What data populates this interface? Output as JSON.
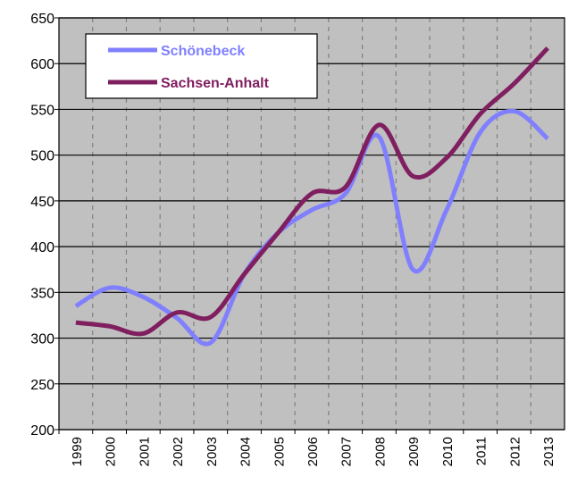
{
  "chart_data": {
    "type": "line",
    "categories": [
      "1999",
      "2000",
      "2001",
      "2002",
      "2003",
      "2004",
      "2005",
      "2006",
      "2007",
      "2008",
      "2009",
      "2010",
      "2011",
      "2012",
      "2013"
    ],
    "series": [
      {
        "name": "Schönebeck",
        "color": "#8080ff",
        "values": [
          335,
          355,
          345,
          322,
          295,
          370,
          415,
          440,
          458,
          520,
          375,
          440,
          525,
          548,
          518
        ]
      },
      {
        "name": "Sachsen-Anhalt",
        "color": "#801f60",
        "values": [
          317,
          313,
          305,
          328,
          323,
          370,
          415,
          458,
          465,
          533,
          477,
          497,
          545,
          578,
          617
        ]
      }
    ],
    "ylim": [
      200,
      650
    ],
    "yticks": [
      200,
      250,
      300,
      350,
      400,
      450,
      500,
      550,
      600,
      650
    ],
    "grid": true,
    "legend": "top-left"
  }
}
